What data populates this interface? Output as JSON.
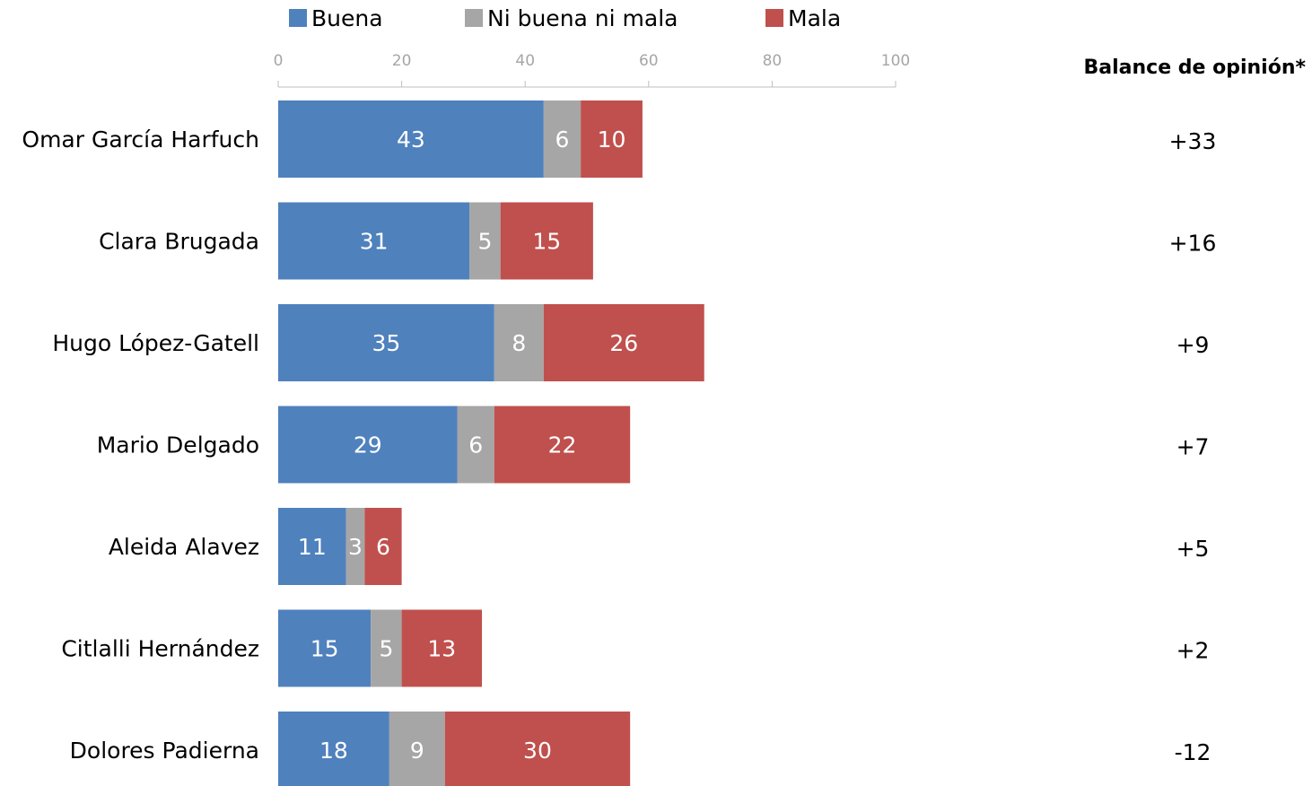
{
  "chart_data": {
    "type": "bar",
    "orientation": "horizontal",
    "stacked": true,
    "categories": [
      "Omar García Harfuch",
      "Clara Brugada",
      "Hugo López-Gatell",
      "Mario Delgado",
      "Aleida Alavez",
      "Citlalli Hernández",
      "Dolores Padierna"
    ],
    "series": [
      {
        "name": "Buena",
        "color": "#4f81bd",
        "values": [
          43,
          31,
          35,
          29,
          11,
          15,
          18
        ]
      },
      {
        "name": "Ni buena ni mala",
        "color": "#a6a6a6",
        "values": [
          6,
          5,
          8,
          6,
          3,
          5,
          9
        ]
      },
      {
        "name": "Mala",
        "color": "#c0504d",
        "values": [
          10,
          15,
          26,
          22,
          6,
          13,
          30
        ]
      }
    ],
    "xlim": [
      0,
      100
    ],
    "xticks": [
      0,
      20,
      40,
      60,
      80,
      100
    ],
    "axis_position": "top",
    "legend_position": "top",
    "grid": false,
    "balance": {
      "title": "Balance de opinión*",
      "values": [
        "+33",
        "+16",
        "+9",
        "+7",
        "+5",
        "+2",
        "-12"
      ]
    }
  }
}
